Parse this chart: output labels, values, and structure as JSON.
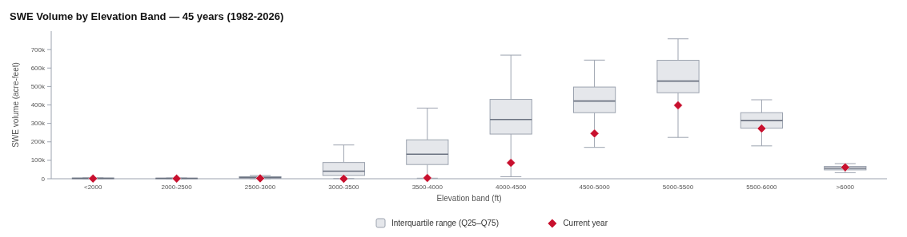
{
  "chart_data": {
    "type": "box",
    "title": "SWE Volume by Elevation Band — 45 years (1982-2026)",
    "xlabel": "Elevation band (ft)",
    "ylabel": "SWE volume (acre-feet)",
    "categories": [
      "<2000",
      "2000-2500",
      "2500-3000",
      "3000-3500",
      "3500-4000",
      "4000-4500",
      "4500-5000",
      "5000-5500",
      "5500-6000",
      ">6000"
    ],
    "ylim": [
      0,
      800000
    ],
    "yticks": [
      0,
      {
        "value": 100000,
        "label": "100k"
      },
      {
        "value": 200000,
        "label": "200k"
      },
      {
        "value": 300000,
        "label": "300k"
      },
      {
        "value": 400000,
        "label": "400k"
      },
      {
        "value": 500000,
        "label": "500k"
      },
      {
        "value": 600000,
        "label": "600k"
      },
      {
        "value": 700000,
        "label": "700k"
      }
    ],
    "grid": false,
    "legend": "bottom",
    "series": [
      {
        "name": "Interquartile range (Q25–Q75)",
        "type": "box",
        "color": "#e5e7eb",
        "boxes": [
          {
            "low": 0,
            "q1": 0,
            "median": 2000,
            "q3": 4000,
            "high": 5000
          },
          {
            "low": 0,
            "q1": 0,
            "median": 2000,
            "q3": 3000,
            "high": 4000
          },
          {
            "low": 0,
            "q1": 3000,
            "median": 7000,
            "q3": 11000,
            "high": 18000
          },
          {
            "low": 1000,
            "q1": 18000,
            "median": 41000,
            "q3": 88000,
            "high": 183000
          },
          {
            "low": 3000,
            "q1": 77000,
            "median": 133000,
            "q3": 211000,
            "high": 383000
          },
          {
            "low": 11000,
            "q1": 242000,
            "median": 321000,
            "q3": 430000,
            "high": 670000
          },
          {
            "low": 170000,
            "q1": 358000,
            "median": 421000,
            "q3": 497000,
            "high": 643000
          },
          {
            "low": 224000,
            "q1": 466000,
            "median": 529000,
            "q3": 642000,
            "high": 758000
          },
          {
            "low": 178000,
            "q1": 274000,
            "median": 315000,
            "q3": 358000,
            "high": 428000
          },
          {
            "low": 33000,
            "q1": 48000,
            "median": 57000,
            "q3": 67000,
            "high": 82000
          }
        ]
      },
      {
        "name": "Current year",
        "type": "scatter",
        "color": "#c8102e",
        "marker": "diamond",
        "x": [
          "<2000",
          "2000-2500",
          "2500-3000",
          "3000-3500",
          "3500-4000",
          "4000-4500",
          "4500-5000",
          "5000-5500",
          "5500-6000",
          ">6000"
        ],
        "values": [
          1000,
          1000,
          2000,
          0,
          4000,
          86000,
          245000,
          398000,
          272000,
          62000
        ]
      }
    ]
  }
}
